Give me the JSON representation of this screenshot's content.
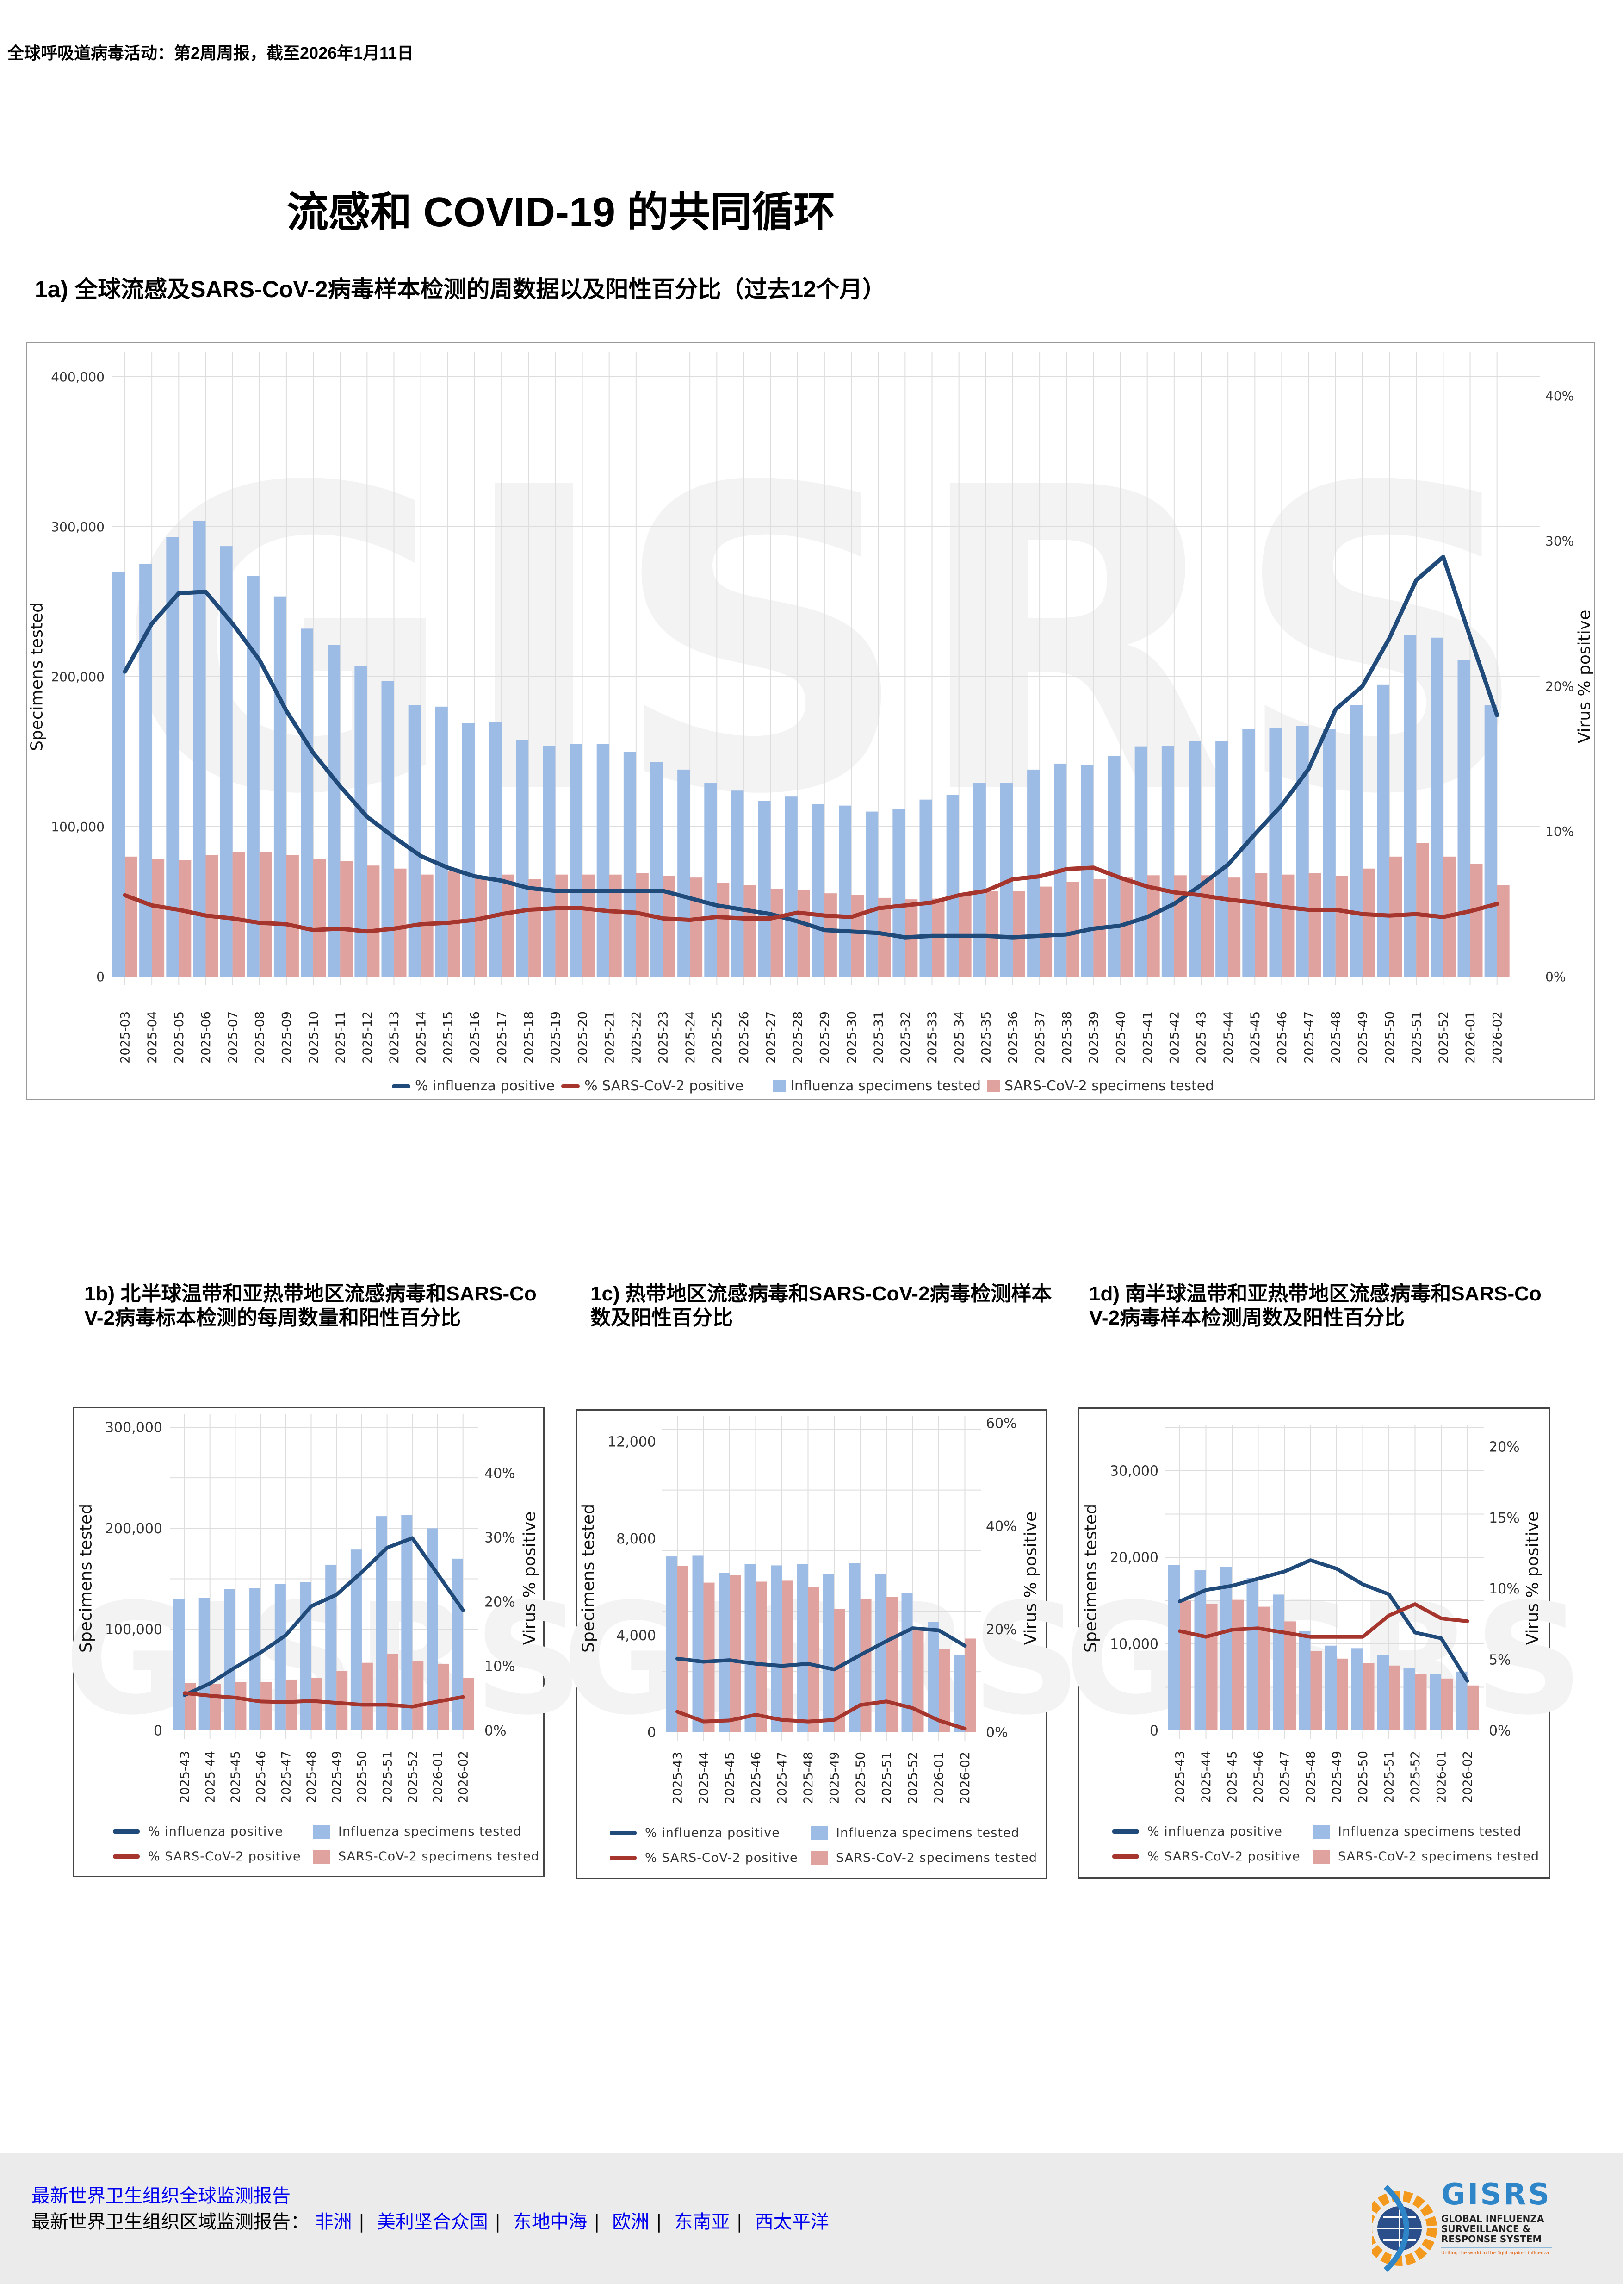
{
  "header": "全球呼吸道病毒活动：第2周周报，截至2026年1月11日",
  "title": "流感和 COVID-19 的共同循环",
  "colors": {
    "influenza_bar": "#9cbbe5",
    "sars_bar": "#e0a29e",
    "influenza_line": "#1f4a7a",
    "sars_line": "#a5352d",
    "watermark": "#f3f3f3"
  },
  "watermark": "GISRS",
  "legend": {
    "flu_pct": "% influenza positive",
    "sars_pct": "% SARS-CoV-2 positive",
    "flu_tested": "Influenza specimens tested",
    "sars_tested": "SARS-CoV-2 specimens tested"
  },
  "chart_data": [
    {
      "id": "1a",
      "type": "bar",
      "title": "1a) 全球流感及SARS-CoV-2病毒样本检测的周数据以及阳性百分比（过去12个月）",
      "ylabel": "Specimens tested",
      "ylabel_right": "Virus % positive",
      "ylim": [
        0,
        400000
      ],
      "ylim_right": [
        0,
        41
      ],
      "left_ticks": [
        {
          "v": 0,
          "t": "0"
        },
        {
          "v": 100000,
          "t": "100,000"
        },
        {
          "v": 200000,
          "t": "200,000"
        },
        {
          "v": 300000,
          "t": "300,000"
        },
        {
          "v": 400000,
          "t": "400,000"
        }
      ],
      "right_ticks": [
        {
          "v": 0,
          "t": "0%"
        },
        {
          "v": 10,
          "t": "10%"
        },
        {
          "v": 20,
          "t": "20%"
        },
        {
          "v": 30,
          "t": "30%"
        },
        {
          "v": 40,
          "t": "40%"
        }
      ],
      "grid": true,
      "legend_position": "bottom",
      "categories": [
        "2025-03",
        "2025-04",
        "2025-05",
        "2025-06",
        "2025-07",
        "2025-08",
        "2025-09",
        "2025-10",
        "2025-11",
        "2025-12",
        "2025-13",
        "2025-14",
        "2025-15",
        "2025-16",
        "2025-17",
        "2025-18",
        "2025-19",
        "2025-20",
        "2025-21",
        "2025-22",
        "2025-23",
        "2025-24",
        "2025-25",
        "2025-26",
        "2025-27",
        "2025-28",
        "2025-29",
        "2025-30",
        "2025-31",
        "2025-32",
        "2025-33",
        "2025-34",
        "2025-35",
        "2025-36",
        "2025-37",
        "2025-38",
        "2025-39",
        "2025-40",
        "2025-41",
        "2025-42",
        "2025-43",
        "2025-44",
        "2025-45",
        "2025-46",
        "2025-47",
        "2025-48",
        "2025-49",
        "2025-50",
        "2025-51",
        "2025-52",
        "2026-01",
        "2026-02"
      ],
      "series": [
        {
          "name": "Influenza specimens tested",
          "kind": "bar",
          "axis": "left",
          "values": [
            270000,
            275000,
            293000,
            304000,
            287000,
            267000,
            253500,
            232000,
            221000,
            207000,
            197000,
            181000,
            180000,
            169000,
            170000,
            158000,
            154000,
            155000,
            155000,
            150000,
            143000,
            138000,
            129000,
            124000,
            117000,
            120000,
            115000,
            114000,
            110000,
            112000,
            118000,
            121000,
            129000,
            129000,
            138000,
            142000,
            141000,
            147000,
            153500,
            154000,
            157000,
            157000,
            165000,
            166000,
            167000,
            165000,
            181000,
            194500,
            228000,
            226000,
            211000,
            181000
          ]
        },
        {
          "name": "SARS-CoV-2 specimens tested",
          "kind": "bar",
          "axis": "left",
          "values": [
            80000,
            78500,
            77500,
            81000,
            83000,
            83000,
            81000,
            78500,
            77000,
            74000,
            72000,
            68000,
            70500,
            66000,
            68000,
            65000,
            68000,
            68000,
            68000,
            69000,
            67000,
            66000,
            62500,
            61000,
            58500,
            58000,
            55500,
            54500,
            52500,
            51500,
            52000,
            54500,
            57000,
            57000,
            60000,
            63000,
            65000,
            66000,
            67500,
            67500,
            67500,
            66000,
            69000,
            68000,
            69000,
            67000,
            72000,
            80000,
            89000,
            80000,
            75000,
            61000
          ]
        },
        {
          "name": "% influenza positive",
          "kind": "line",
          "axis": "right",
          "values": [
            21.0,
            24.3,
            26.4,
            26.5,
            24.3,
            21.8,
            18.3,
            15.4,
            13.1,
            11.0,
            9.6,
            8.3,
            7.5,
            6.9,
            6.6,
            6.1,
            5.9,
            5.9,
            5.9,
            5.9,
            5.9,
            5.4,
            4.9,
            4.6,
            4.3,
            3.8,
            3.2,
            3.1,
            3.0,
            2.7,
            2.8,
            2.8,
            2.8,
            2.7,
            2.8,
            2.9,
            3.3,
            3.5,
            4.1,
            5.0,
            6.3,
            7.7,
            9.8,
            11.8,
            14.3,
            18.4,
            20.0,
            23.3,
            27.3,
            28.9,
            23.4,
            18.0
          ]
        },
        {
          "name": "% SARS-CoV-2 positive",
          "kind": "line",
          "axis": "right",
          "values": [
            5.6,
            4.9,
            4.6,
            4.2,
            4.0,
            3.7,
            3.6,
            3.2,
            3.3,
            3.1,
            3.3,
            3.6,
            3.7,
            3.9,
            4.3,
            4.6,
            4.7,
            4.7,
            4.5,
            4.4,
            4.0,
            3.9,
            4.1,
            4.0,
            4.0,
            4.4,
            4.2,
            4.1,
            4.7,
            4.9,
            5.1,
            5.6,
            5.9,
            6.7,
            6.9,
            7.4,
            7.5,
            6.8,
            6.2,
            5.8,
            5.6,
            5.3,
            5.1,
            4.8,
            4.6,
            4.6,
            4.3,
            4.2,
            4.3,
            4.1,
            4.5,
            5.0
          ]
        }
      ]
    },
    {
      "id": "1b",
      "type": "bar",
      "title": "1b) 北半球温带和亚热带地区流感病毒和SARS-CoV-2病毒标本检测的每周数量和阳性百分比",
      "ylabel": "Specimens tested",
      "ylabel_right": "Virus % positive",
      "ylim": [
        0,
        300000
      ],
      "ylim_right": [
        0,
        47
      ],
      "left_ticks": [
        {
          "v": 0,
          "t": "0"
        },
        {
          "v": 100000,
          "t": "100,000"
        },
        {
          "v": 200000,
          "t": "200,000"
        },
        {
          "v": 300000,
          "t": "300,000"
        }
      ],
      "right_ticks": [
        {
          "v": 0,
          "t": "0%"
        },
        {
          "v": 10,
          "t": "10%"
        },
        {
          "v": 20,
          "t": "20%"
        },
        {
          "v": 30,
          "t": "30%"
        },
        {
          "v": 40,
          "t": "40%"
        }
      ],
      "grid": true,
      "legend_position": "bottom",
      "categories": [
        "2025-43",
        "2025-44",
        "2025-45",
        "2025-46",
        "2025-47",
        "2025-48",
        "2025-49",
        "2025-50",
        "2025-51",
        "2025-52",
        "2026-01",
        "2026-02"
      ],
      "series": [
        {
          "name": "Influenza specimens tested",
          "kind": "bar",
          "axis": "left",
          "values": [
            130000,
            131000,
            140000,
            141000,
            145000,
            147000,
            164000,
            179000,
            212000,
            213000,
            200000,
            170000
          ]
        },
        {
          "name": "SARS-CoV-2 specimens tested",
          "kind": "bar",
          "axis": "left",
          "values": [
            47000,
            46000,
            48000,
            48000,
            50000,
            52000,
            59000,
            67000,
            76000,
            69000,
            66000,
            52000
          ]
        },
        {
          "name": "% influenza positive",
          "kind": "line",
          "axis": "right",
          "values": [
            5.5,
            7.3,
            9.8,
            12.1,
            14.8,
            19.3,
            21.1,
            24.6,
            28.4,
            29.9,
            24.3,
            18.7
          ]
        },
        {
          "name": "% SARS-CoV-2 positive",
          "kind": "line",
          "axis": "right",
          "values": [
            5.8,
            5.4,
            5.1,
            4.5,
            4.4,
            4.6,
            4.3,
            4.0,
            4.0,
            3.7,
            4.5,
            5.2
          ]
        }
      ]
    },
    {
      "id": "1c",
      "type": "bar",
      "title": "1c) 热带地区流感病毒和SARS-CoV-2病毒检测样本数及阳性百分比",
      "ylabel": "Specimens tested",
      "ylabel_right": "Virus % positive",
      "ylim": [
        0,
        12500
      ],
      "ylim_right": [
        0,
        60
      ],
      "left_ticks": [
        {
          "v": 0,
          "t": "0"
        },
        {
          "v": 4000,
          "t": "4,000"
        },
        {
          "v": 8000,
          "t": "8,000"
        },
        {
          "v": 12000,
          "t": "12,000"
        }
      ],
      "right_ticks": [
        {
          "v": 0,
          "t": "0%"
        },
        {
          "v": 20,
          "t": "20%"
        },
        {
          "v": 40,
          "t": "40%"
        },
        {
          "v": 60,
          "t": "60%"
        }
      ],
      "grid": true,
      "legend_position": "bottom",
      "categories": [
        "2025-43",
        "2025-44",
        "2025-45",
        "2025-46",
        "2025-47",
        "2025-48",
        "2025-49",
        "2025-50",
        "2025-51",
        "2025-52",
        "2026-01",
        "2026-02"
      ],
      "series": [
        {
          "name": "Influenza specimens tested",
          "kind": "bar",
          "axis": "left",
          "values": [
            7260,
            7310,
            6580,
            6950,
            6890,
            6950,
            6530,
            6990,
            6530,
            5770,
            4550,
            3210
          ]
        },
        {
          "name": "SARS-CoV-2 specimens tested",
          "kind": "bar",
          "axis": "left",
          "values": [
            6860,
            6180,
            6480,
            6220,
            6260,
            6000,
            5090,
            5490,
            5590,
            4340,
            3440,
            3870
          ]
        },
        {
          "name": "% influenza positive",
          "kind": "line",
          "axis": "right",
          "values": [
            14.3,
            13.7,
            14.0,
            13.3,
            12.9,
            13.3,
            12.2,
            15.0,
            17.7,
            20.2,
            19.8,
            16.8
          ]
        },
        {
          "name": "% SARS-CoV-2 positive",
          "kind": "line",
          "axis": "right",
          "values": [
            4.0,
            2.1,
            2.3,
            3.4,
            2.4,
            2.1,
            2.4,
            5.3,
            6.0,
            4.7,
            2.3,
            0.7
          ]
        }
      ]
    },
    {
      "id": "1d",
      "type": "bar",
      "title": "1d) 南半球温带和亚热带地区流感病毒和SARS-CoV-2病毒样本检测周数及阳性百分比",
      "ylabel": "Specimens tested",
      "ylabel_right": "Virus % positive",
      "ylim": [
        0,
        35000
      ],
      "ylim_right": [
        0,
        21
      ],
      "left_ticks": [
        {
          "v": 0,
          "t": "0"
        },
        {
          "v": 10000,
          "t": "10,000"
        },
        {
          "v": 20000,
          "t": "20,000"
        },
        {
          "v": 30000,
          "t": "30,000"
        }
      ],
      "right_ticks": [
        {
          "v": 0,
          "t": "0%"
        },
        {
          "v": 5,
          "t": "5%"
        },
        {
          "v": 10,
          "t": "10%"
        },
        {
          "v": 15,
          "t": "15%"
        },
        {
          "v": 20,
          "t": "20%"
        }
      ],
      "grid": true,
      "legend_position": "bottom",
      "categories": [
        "2025-43",
        "2025-44",
        "2025-45",
        "2025-46",
        "2025-47",
        "2025-48",
        "2025-49",
        "2025-50",
        "2025-51",
        "2025-52",
        "2026-01",
        "2026-02"
      ],
      "series": [
        {
          "name": "Influenza specimens tested",
          "kind": "bar",
          "axis": "left",
          "values": [
            19100,
            18500,
            18900,
            17600,
            15700,
            11500,
            9800,
            9500,
            8700,
            7200,
            6500,
            6800
          ]
        },
        {
          "name": "SARS-CoV-2 specimens tested",
          "kind": "bar",
          "axis": "left",
          "values": [
            15000,
            14600,
            15100,
            14300,
            12600,
            9200,
            8300,
            7800,
            7500,
            6500,
            6000,
            5200
          ]
        },
        {
          "name": "% influenza positive",
          "kind": "line",
          "axis": "right",
          "values": [
            9.1,
            9.9,
            10.2,
            10.7,
            11.2,
            12.0,
            11.4,
            10.3,
            9.6,
            6.9,
            6.5,
            3.5
          ]
        },
        {
          "name": "% SARS-CoV-2 positive",
          "kind": "line",
          "axis": "right",
          "values": [
            7.0,
            6.6,
            7.1,
            7.2,
            6.9,
            6.6,
            6.6,
            6.6,
            8.1,
            8.9,
            7.9,
            7.7
          ]
        }
      ]
    }
  ],
  "footer": {
    "global_link": "最新世界卫生组织全球监测报告",
    "regional_label": "最新世界卫生组织区域监测报告：",
    "regions": [
      "非洲",
      "美利坚合众国",
      "东地中海",
      "欧洲",
      "东南亚",
      "西太平洋"
    ],
    "logo": {
      "name": "GISRS",
      "line1": "GLOBAL INFLUENZA",
      "line2": "SURVEILLANCE &",
      "line3": "RESPONSE SYSTEM",
      "tagline": "Uniting the world in the fight against influenza"
    }
  }
}
